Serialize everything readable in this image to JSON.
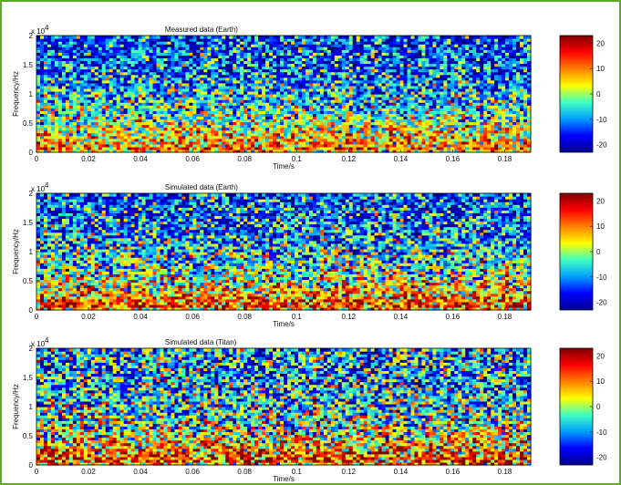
{
  "colors": {
    "frame_border": "#5aaa2a",
    "colormap": [
      "#00008f",
      "#0000ff",
      "#00a0ff",
      "#40ffc0",
      "#ffff00",
      "#ff8000",
      "#ff0000",
      "#800000"
    ]
  },
  "chart_data": [
    {
      "type": "heatmap",
      "title": "Measured data (Earth)",
      "xlabel": "Time/s",
      "ylabel": "Frequency/Hz",
      "y_exponent": "x 10",
      "y_exponent_power": "4",
      "xlim": [
        0,
        0.19
      ],
      "ylim": [
        0,
        2
      ],
      "xticks": [
        "0",
        "0.02",
        "0.04",
        "0.06",
        "0.08",
        "0.1",
        "0.12",
        "0.14",
        "0.16",
        "0.18"
      ],
      "xtick_values": [
        0,
        0.02,
        0.04,
        0.06,
        0.08,
        0.1,
        0.12,
        0.14,
        0.16,
        0.18
      ],
      "yticks": [
        "0",
        "0.5",
        "1",
        "1.5",
        "2"
      ],
      "ytick_values": [
        0,
        0.5,
        1,
        1.5,
        2
      ],
      "colorbar": {
        "ticks": [
          "20",
          "10",
          "0",
          "-10",
          "-20"
        ],
        "values": [
          20,
          10,
          0,
          -10,
          -20
        ],
        "range": [
          -23,
          23
        ]
      },
      "intensity_profile": {
        "note_free": true,
        "base_level": -18,
        "low_band_level": 12,
        "band_edge": 0.3,
        "decay": 0.9,
        "variance": 1.0
      }
    },
    {
      "type": "heatmap",
      "title": "Simulated data (Earth)",
      "xlabel": "Time/s",
      "ylabel": "Frequency/Hz",
      "y_exponent": "x 10",
      "y_exponent_power": "4",
      "xlim": [
        0,
        0.19
      ],
      "ylim": [
        0,
        2
      ],
      "xticks": [
        "0",
        "0.02",
        "0.04",
        "0.06",
        "0.08",
        "0.1",
        "0.12",
        "0.14",
        "0.16",
        "0.18"
      ],
      "xtick_values": [
        0,
        0.02,
        0.04,
        0.06,
        0.08,
        0.1,
        0.12,
        0.14,
        0.16,
        0.18
      ],
      "yticks": [
        "0",
        "0.5",
        "1",
        "1.5",
        "2"
      ],
      "ytick_values": [
        0,
        0.5,
        1,
        1.5,
        2
      ],
      "colorbar": {
        "ticks": [
          "20",
          "10",
          "0",
          "-10",
          "-20"
        ],
        "values": [
          20,
          10,
          0,
          -10,
          -20
        ],
        "range": [
          -23,
          23
        ]
      },
      "intensity_profile": {
        "base_level": -16,
        "low_band_level": 14,
        "band_edge": 0.6,
        "decay": 0.75,
        "variance": 1.1
      }
    },
    {
      "type": "heatmap",
      "title": "Simulated data (Titan)",
      "xlabel": "Time/s",
      "ylabel": "Frequency/Hz",
      "y_exponent": "x 10",
      "y_exponent_power": "4",
      "xlim": [
        0,
        0.19
      ],
      "ylim": [
        0,
        2
      ],
      "xticks": [
        "0",
        "0.02",
        "0.04",
        "0.06",
        "0.08",
        "0.1",
        "0.12",
        "0.14",
        "0.16",
        "0.18"
      ],
      "xtick_values": [
        0,
        0.02,
        0.04,
        0.06,
        0.08,
        0.1,
        0.12,
        0.14,
        0.16,
        0.18
      ],
      "yticks": [
        "0",
        "0.5",
        "1",
        "1.5",
        "2"
      ],
      "ytick_values": [
        0,
        0.5,
        1,
        1.5,
        2
      ],
      "colorbar": {
        "ticks": [
          "20",
          "10",
          "0",
          "-10",
          "-20"
        ],
        "values": [
          20,
          10,
          0,
          -10,
          -20
        ],
        "range": [
          -23,
          23
        ]
      },
      "intensity_profile": {
        "base_level": -10,
        "low_band_level": 14,
        "band_edge": 1.0,
        "decay": 0.5,
        "variance": 1.25
      }
    }
  ]
}
